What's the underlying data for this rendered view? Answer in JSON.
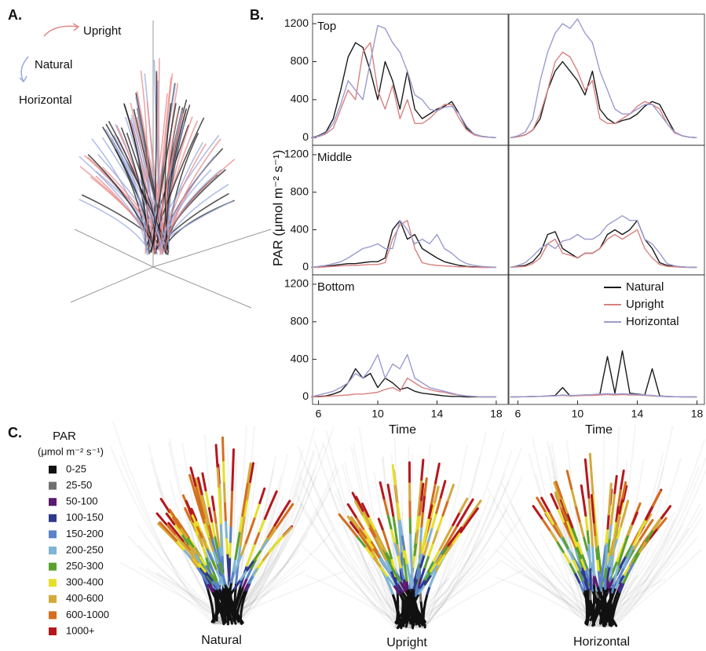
{
  "panel_labels": [
    "A.",
    "B.",
    "C."
  ],
  "panel_a": {
    "labels": [
      "Upright",
      "Natural",
      "Horizontal"
    ]
  },
  "y_label": "PAR (μmol m⁻² s⁻¹)",
  "panel_c": {
    "title": "PAR",
    "unit": "(μmol m⁻² s⁻¹)",
    "legend": [
      {
        "label": "0-25",
        "color": "#111111"
      },
      {
        "label": "25-50",
        "color": "#707070"
      },
      {
        "label": "50-100",
        "color": "#5b1a6e"
      },
      {
        "label": "100-150",
        "color": "#2e3a8c"
      },
      {
        "label": "150-200",
        "color": "#5a82c8"
      },
      {
        "label": "200-250",
        "color": "#7fb4d4"
      },
      {
        "label": "250-300",
        "color": "#5aa02e"
      },
      {
        "label": "300-400",
        "color": "#e6df2a"
      },
      {
        "label": "400-600",
        "color": "#d4aa3c"
      },
      {
        "label": "600-1000",
        "color": "#d46e1e"
      },
      {
        "label": "1000+",
        "color": "#b4181e"
      }
    ],
    "plant_labels": [
      "Natural",
      "Upright",
      "Horizontal"
    ]
  },
  "chart_data": [
    {
      "type": "line",
      "title": "Top",
      "xlim": [
        5.6,
        18.8
      ],
      "ylim": [
        -80,
        1300
      ],
      "yticks": [
        0,
        400,
        800,
        1200
      ],
      "x": [
        5.5,
        6,
        6.5,
        7,
        7.5,
        8,
        8.5,
        9,
        9.5,
        10,
        10.5,
        11,
        11.5,
        12,
        12.5,
        13,
        13.5,
        14,
        14.5,
        15,
        15.5,
        16,
        16.5,
        17,
        17.5,
        18
      ],
      "series": [
        {
          "color": "#1a1a1a",
          "values": [
            0,
            20,
            60,
            200,
            500,
            850,
            1000,
            950,
            700,
            400,
            800,
            600,
            300,
            700,
            300,
            200,
            250,
            300,
            330,
            380,
            250,
            100,
            40,
            15,
            5,
            0
          ]
        },
        {
          "color": "#d98080",
          "values": [
            0,
            10,
            40,
            100,
            300,
            500,
            400,
            900,
            1000,
            500,
            300,
            550,
            200,
            400,
            150,
            150,
            200,
            280,
            350,
            350,
            200,
            80,
            30,
            10,
            5,
            0
          ]
        },
        {
          "color": "#9b9bd0",
          "values": [
            0,
            15,
            50,
            150,
            350,
            600,
            500,
            400,
            800,
            1180,
            1150,
            1000,
            900,
            700,
            450,
            400,
            300,
            280,
            320,
            330,
            250,
            120,
            40,
            15,
            5,
            0
          ]
        }
      ]
    },
    {
      "type": "line",
      "xlim": [
        5.4,
        18.5
      ],
      "ylim": [
        -80,
        1300
      ],
      "x": [
        5.5,
        6,
        6.5,
        7,
        7.5,
        8,
        8.5,
        9,
        9.5,
        10,
        10.5,
        11,
        11.5,
        12,
        12.5,
        13,
        13.5,
        14,
        14.5,
        15,
        15.5,
        16,
        16.5,
        17,
        17.5,
        18
      ],
      "series": [
        {
          "color": "#1a1a1a",
          "values": [
            0,
            10,
            30,
            80,
            200,
            500,
            700,
            800,
            700,
            600,
            450,
            700,
            300,
            200,
            150,
            180,
            200,
            250,
            330,
            380,
            350,
            200,
            60,
            20,
            5,
            0
          ]
        },
        {
          "color": "#d98080",
          "values": [
            0,
            10,
            30,
            80,
            250,
            500,
            800,
            900,
            850,
            700,
            500,
            600,
            200,
            150,
            150,
            200,
            250,
            330,
            380,
            350,
            300,
            150,
            50,
            20,
            5,
            0
          ]
        },
        {
          "color": "#9b9bd0",
          "values": [
            0,
            20,
            60,
            200,
            600,
            900,
            1100,
            1200,
            1150,
            1250,
            1100,
            1000,
            700,
            500,
            300,
            250,
            250,
            300,
            350,
            350,
            250,
            150,
            60,
            20,
            5,
            0
          ]
        }
      ]
    },
    {
      "type": "line",
      "title": "Middle",
      "xlim": [
        5.6,
        18.8
      ],
      "ylim": [
        -80,
        1300
      ],
      "yticks": [
        0,
        400,
        800,
        1200
      ],
      "x": [
        5.5,
        6,
        6.5,
        7,
        7.5,
        8,
        8.5,
        9,
        9.5,
        10,
        10.5,
        11,
        11.5,
        12,
        12.5,
        13,
        13.5,
        14,
        14.5,
        15,
        15.5,
        16,
        16.5,
        17,
        17.5,
        18
      ],
      "series": [
        {
          "color": "#1a1a1a",
          "values": [
            0,
            5,
            10,
            20,
            30,
            40,
            40,
            50,
            60,
            60,
            100,
            400,
            500,
            300,
            350,
            200,
            150,
            100,
            60,
            40,
            20,
            10,
            5,
            0,
            0,
            0
          ]
        },
        {
          "color": "#d98080",
          "values": [
            0,
            0,
            5,
            10,
            15,
            20,
            20,
            25,
            30,
            30,
            50,
            300,
            450,
            500,
            200,
            50,
            30,
            20,
            15,
            10,
            5,
            5,
            0,
            0,
            0,
            0
          ]
        },
        {
          "color": "#9b9bd0",
          "values": [
            0,
            10,
            20,
            40,
            60,
            100,
            150,
            200,
            220,
            250,
            200,
            200,
            500,
            400,
            250,
            300,
            250,
            350,
            200,
            150,
            80,
            40,
            20,
            10,
            5,
            0
          ]
        }
      ]
    },
    {
      "type": "line",
      "xlim": [
        5.4,
        18.5
      ],
      "ylim": [
        -80,
        1300
      ],
      "x": [
        5.5,
        6,
        6.5,
        7,
        7.5,
        8,
        8.5,
        9,
        9.5,
        10,
        10.5,
        11,
        11.5,
        12,
        12.5,
        13,
        13.5,
        14,
        14.5,
        15,
        15.5,
        16,
        16.5,
        17,
        17.5,
        18
      ],
      "series": [
        {
          "color": "#1a1a1a",
          "values": [
            0,
            10,
            20,
            60,
            150,
            350,
            380,
            200,
            150,
            100,
            150,
            150,
            200,
            350,
            400,
            350,
            400,
            500,
            300,
            200,
            50,
            20,
            10,
            5,
            0,
            0
          ]
        },
        {
          "color": "#d98080",
          "values": [
            0,
            5,
            10,
            40,
            100,
            250,
            300,
            150,
            130,
            100,
            150,
            150,
            200,
            300,
            350,
            300,
            350,
            400,
            200,
            100,
            30,
            10,
            5,
            0,
            0,
            0
          ]
        },
        {
          "color": "#9b9bd0",
          "values": [
            0,
            20,
            50,
            120,
            200,
            250,
            200,
            280,
            300,
            350,
            300,
            300,
            350,
            450,
            500,
            550,
            500,
            500,
            300,
            250,
            150,
            40,
            15,
            5,
            0,
            0
          ]
        }
      ]
    },
    {
      "type": "line",
      "title": "Bottom",
      "xlabel": "Time",
      "xlim": [
        5.6,
        18.8
      ],
      "ylim": [
        -80,
        1300
      ],
      "yticks": [
        0,
        400,
        800,
        1200
      ],
      "xticks": [
        6,
        10,
        14,
        18
      ],
      "x": [
        5.5,
        6,
        6.5,
        7,
        7.5,
        8,
        8.5,
        9,
        9.5,
        10,
        10.5,
        11,
        11.5,
        12,
        12.5,
        13,
        13.5,
        14,
        14.5,
        15,
        15.5,
        16,
        16.5,
        17,
        17.5,
        18
      ],
      "series": [
        {
          "color": "#1a1a1a",
          "values": [
            0,
            5,
            10,
            30,
            60,
            150,
            300,
            200,
            250,
            100,
            200,
            150,
            80,
            100,
            60,
            40,
            30,
            20,
            10,
            5,
            5,
            0,
            0,
            0,
            0,
            0
          ]
        },
        {
          "color": "#d98080",
          "values": [
            0,
            0,
            5,
            10,
            15,
            20,
            30,
            30,
            40,
            50,
            80,
            100,
            60,
            200,
            150,
            100,
            80,
            60,
            50,
            30,
            20,
            10,
            5,
            0,
            0,
            0
          ]
        },
        {
          "color": "#9b9bd0",
          "values": [
            0,
            20,
            40,
            60,
            100,
            150,
            250,
            200,
            300,
            450,
            200,
            350,
            300,
            450,
            200,
            150,
            100,
            80,
            60,
            40,
            20,
            10,
            5,
            0,
            0,
            0
          ]
        }
      ]
    },
    {
      "type": "line",
      "xlabel": "Time",
      "xlim": [
        5.4,
        18.5
      ],
      "ylim": [
        -80,
        1300
      ],
      "xticks": [
        6,
        10,
        14,
        18
      ],
      "legend": "upper right",
      "x": [
        5.5,
        6,
        6.5,
        7,
        7.5,
        8,
        8.5,
        9,
        9.5,
        10,
        10.5,
        11,
        11.5,
        12,
        12.5,
        13,
        13.5,
        14,
        14.5,
        15,
        15.5,
        16,
        16.5,
        17,
        17.5,
        18
      ],
      "series": [
        {
          "name": "Natural",
          "color": "#1a1a1a",
          "values": [
            0,
            0,
            2,
            5,
            5,
            10,
            15,
            100,
            10,
            15,
            20,
            20,
            30,
            430,
            40,
            490,
            40,
            30,
            20,
            300,
            10,
            5,
            2,
            0,
            0,
            0
          ]
        },
        {
          "name": "Upright",
          "color": "#d98080",
          "values": [
            0,
            0,
            2,
            3,
            5,
            8,
            10,
            15,
            10,
            12,
            15,
            15,
            20,
            25,
            20,
            25,
            20,
            20,
            15,
            10,
            5,
            3,
            1,
            0,
            0,
            0
          ]
        },
        {
          "name": "Horizontal",
          "color": "#9b9bd0",
          "values": [
            0,
            0,
            2,
            4,
            6,
            10,
            12,
            20,
            15,
            18,
            20,
            25,
            30,
            35,
            30,
            35,
            30,
            25,
            20,
            15,
            8,
            4,
            2,
            0,
            0,
            0
          ]
        }
      ]
    }
  ]
}
